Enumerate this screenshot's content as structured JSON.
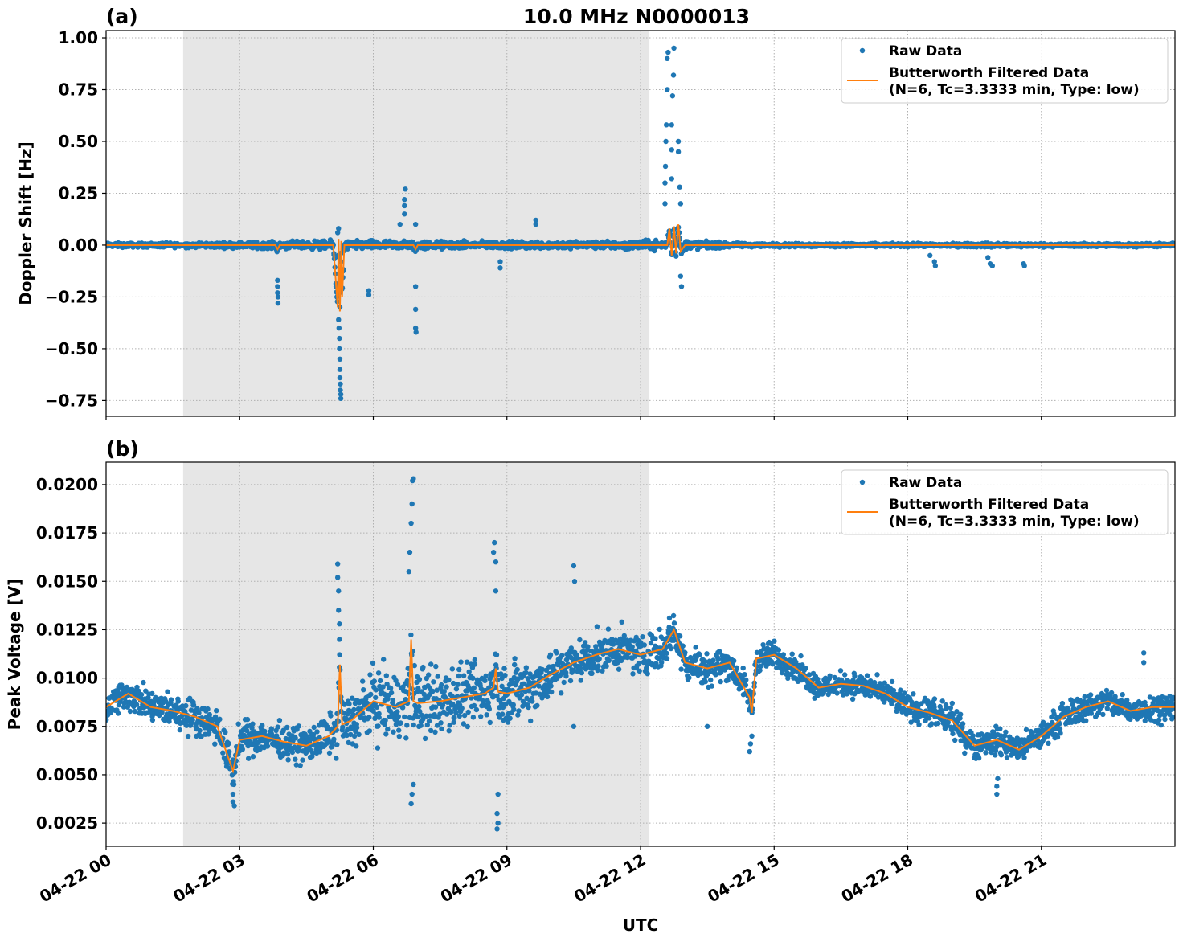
{
  "title": "10.0 MHz N0000013",
  "xlabel": "UTC",
  "colors": {
    "raw": "#1f77b4",
    "filtered": "#ff7f0e",
    "shade": "#e6e6e6",
    "grid": "#b0b0b0"
  },
  "chart_data": [
    {
      "type": "scatter",
      "panel_label": "(a)",
      "ylabel": "Doppler Shift [Hz]",
      "x_units": "hours UTC on 04-22",
      "xlim": [
        0,
        24
      ],
      "ylim": [
        -0.826,
        1.035
      ],
      "grid": true,
      "legend_placement": "top-right",
      "legend": [
        "Raw Data",
        "Butterworth Filtered Data",
        "(N=6, Tc=3.3333 min, Type: low)"
      ],
      "shaded_interval": [
        1.73,
        12.2
      ],
      "x_ticks": [
        0,
        3,
        6,
        9,
        12,
        15,
        18,
        21
      ],
      "x_tick_labels": [
        "04-22 00",
        "04-22 03",
        "04-22 06",
        "04-22 09",
        "04-22 12",
        "04-22 15",
        "04-22 18",
        "04-22 21"
      ],
      "y_ticks": [
        -0.75,
        -0.5,
        -0.25,
        0,
        0.25,
        0.5,
        0.75,
        1.0
      ],
      "y_tick_labels": [
        "−0.75",
        "−0.50",
        "−0.25",
        "0.00",
        "0.25",
        "0.50",
        "0.75",
        "1.00"
      ],
      "filtered": {
        "x": [
          0,
          3.8,
          3.85,
          3.9,
          5.1,
          5.2,
          5.22,
          5.25,
          5.28,
          5.3,
          5.35,
          6.9,
          6.95,
          7.0,
          12.6,
          12.65,
          12.7,
          12.75,
          12.8,
          12.85,
          12.9,
          13.0,
          24
        ],
        "y": [
          0,
          0,
          -0.02,
          0,
          0,
          -0.3,
          0.03,
          -0.32,
          0.02,
          -0.25,
          0,
          0,
          -0.02,
          0,
          0,
          0.08,
          -0.05,
          0.09,
          -0.04,
          0.1,
          -0.03,
          0,
          0
        ]
      },
      "raw_band": {
        "x": [
          0,
          1,
          2,
          3,
          4,
          5,
          6,
          7,
          8,
          9,
          10,
          11,
          12,
          13,
          14,
          15,
          16,
          17,
          18,
          19,
          20,
          21,
          22,
          23,
          24
        ],
        "half_width": [
          0.015,
          0.015,
          0.017,
          0.02,
          0.025,
          0.03,
          0.03,
          0.03,
          0.025,
          0.025,
          0.025,
          0.025,
          0.03,
          0.035,
          0.015,
          0.012,
          0.012,
          0.012,
          0.012,
          0.012,
          0.015,
          0.012,
          0.012,
          0.012,
          0.012
        ]
      },
      "raw_outliers": [
        [
          3.85,
          -0.17
        ],
        [
          3.85,
          -0.2
        ],
        [
          3.85,
          -0.23
        ],
        [
          3.86,
          -0.25
        ],
        [
          3.86,
          -0.28
        ],
        [
          5.22,
          -0.36
        ],
        [
          5.23,
          -0.4
        ],
        [
          5.24,
          -0.45
        ],
        [
          5.24,
          -0.5
        ],
        [
          5.25,
          -0.55
        ],
        [
          5.25,
          -0.6
        ],
        [
          5.25,
          -0.64
        ],
        [
          5.26,
          -0.67
        ],
        [
          5.26,
          -0.7
        ],
        [
          5.27,
          -0.72
        ],
        [
          5.27,
          -0.74
        ],
        [
          5.2,
          0.06
        ],
        [
          5.22,
          0.08
        ],
        [
          5.9,
          -0.22
        ],
        [
          5.9,
          -0.24
        ],
        [
          6.6,
          0.1
        ],
        [
          6.7,
          0.15
        ],
        [
          6.7,
          0.19
        ],
        [
          6.7,
          0.22
        ],
        [
          6.72,
          0.27
        ],
        [
          6.95,
          0.1
        ],
        [
          6.95,
          -0.2
        ],
        [
          6.95,
          -0.31
        ],
        [
          6.95,
          -0.4
        ],
        [
          6.96,
          -0.42
        ],
        [
          8.85,
          -0.08
        ],
        [
          8.85,
          -0.11
        ],
        [
          9.65,
          0.1
        ],
        [
          9.65,
          0.12
        ],
        [
          12.55,
          0.2
        ],
        [
          12.55,
          0.3
        ],
        [
          12.56,
          0.38
        ],
        [
          12.57,
          0.5
        ],
        [
          12.58,
          0.58
        ],
        [
          12.6,
          0.75
        ],
        [
          12.6,
          0.9
        ],
        [
          12.62,
          0.93
        ],
        [
          12.7,
          0.32
        ],
        [
          12.7,
          0.46
        ],
        [
          12.7,
          0.58
        ],
        [
          12.72,
          0.72
        ],
        [
          12.74,
          0.82
        ],
        [
          12.75,
          0.95
        ],
        [
          12.85,
          0.5
        ],
        [
          12.85,
          0.45
        ],
        [
          12.88,
          0.28
        ],
        [
          12.9,
          0.2
        ],
        [
          12.9,
          -0.15
        ],
        [
          12.92,
          -0.2
        ],
        [
          18.5,
          -0.05
        ],
        [
          18.6,
          -0.08
        ],
        [
          18.62,
          -0.1
        ],
        [
          19.8,
          -0.06
        ],
        [
          19.85,
          -0.09
        ],
        [
          19.9,
          -0.1
        ],
        [
          20.6,
          -0.09
        ],
        [
          20.62,
          -0.1
        ]
      ]
    },
    {
      "type": "scatter",
      "panel_label": "(b)",
      "ylabel": "Peak Voltage [V]",
      "x_units": "hours UTC on 04-22",
      "xlim": [
        0,
        24
      ],
      "ylim": [
        0.0013,
        0.02116
      ],
      "grid": true,
      "legend_placement": "top-right",
      "legend": [
        "Raw Data",
        "Butterworth Filtered Data",
        "(N=6, Tc=3.3333 min, Type: low)"
      ],
      "shaded_interval": [
        1.73,
        12.2
      ],
      "x_ticks": [
        0,
        3,
        6,
        9,
        12,
        15,
        18,
        21
      ],
      "x_tick_labels": [
        "04-22 00",
        "04-22 03",
        "04-22 06",
        "04-22 09",
        "04-22 12",
        "04-22 15",
        "04-22 18",
        "04-22 21"
      ],
      "y_ticks": [
        0.0025,
        0.005,
        0.0075,
        0.01,
        0.0125,
        0.015,
        0.0175,
        0.02
      ],
      "y_tick_labels": [
        "0.0025",
        "0.0050",
        "0.0075",
        "0.0100",
        "0.0125",
        "0.0150",
        "0.0175",
        "0.0200"
      ],
      "filtered": {
        "x": [
          0,
          0.5,
          1,
          1.5,
          2,
          2.5,
          2.85,
          3,
          3.5,
          4,
          4.5,
          5,
          5.2,
          5.25,
          5.3,
          5.5,
          6,
          6.5,
          6.8,
          6.85,
          6.9,
          7,
          7.5,
          8,
          8.5,
          8.7,
          8.75,
          8.8,
          9,
          9.5,
          10,
          10.5,
          11,
          11.5,
          12,
          12.5,
          12.75,
          13,
          13.5,
          14,
          14.45,
          14.5,
          14.6,
          15,
          15.5,
          16,
          16.5,
          17,
          17.5,
          18,
          18.5,
          19,
          19.5,
          20,
          20.5,
          21,
          21.5,
          22,
          22.5,
          23,
          23.5,
          24
        ],
        "y": [
          0.0085,
          0.0092,
          0.0085,
          0.0083,
          0.008,
          0.0075,
          0.0052,
          0.0068,
          0.007,
          0.0067,
          0.0065,
          0.007,
          0.0075,
          0.0107,
          0.0076,
          0.0078,
          0.0088,
          0.0085,
          0.0088,
          0.012,
          0.0088,
          0.0087,
          0.0088,
          0.009,
          0.0092,
          0.0095,
          0.0105,
          0.0093,
          0.0092,
          0.0095,
          0.0102,
          0.0108,
          0.0112,
          0.0115,
          0.0112,
          0.0115,
          0.0125,
          0.0108,
          0.0105,
          0.0108,
          0.009,
          0.0082,
          0.011,
          0.0112,
          0.0105,
          0.0095,
          0.0097,
          0.0096,
          0.0092,
          0.0085,
          0.0082,
          0.0078,
          0.0065,
          0.0068,
          0.0063,
          0.007,
          0.008,
          0.0085,
          0.0088,
          0.0083,
          0.0085,
          0.0085
        ]
      },
      "raw_band": {
        "x": [
          0,
          1,
          2,
          3,
          4,
          5,
          6,
          7,
          8,
          9,
          10,
          11,
          12,
          13,
          14,
          15,
          16,
          17,
          18,
          19,
          20,
          21,
          22,
          23,
          24
        ],
        "half_width": [
          0.0012,
          0.0012,
          0.0013,
          0.0013,
          0.0012,
          0.0015,
          0.0025,
          0.003,
          0.0022,
          0.0025,
          0.0018,
          0.0015,
          0.0015,
          0.0014,
          0.0012,
          0.001,
          0.0009,
          0.0009,
          0.001,
          0.0011,
          0.001,
          0.001,
          0.001,
          0.001,
          0.001
        ]
      },
      "raw_outliers": [
        [
          2.85,
          0.0036
        ],
        [
          2.85,
          0.004
        ],
        [
          2.87,
          0.0045
        ],
        [
          2.88,
          0.0034
        ],
        [
          5.2,
          0.0159
        ],
        [
          5.2,
          0.0152
        ],
        [
          5.22,
          0.0145
        ],
        [
          5.22,
          0.0135
        ],
        [
          5.24,
          0.0128
        ],
        [
          5.24,
          0.012
        ],
        [
          6.8,
          0.0155
        ],
        [
          6.82,
          0.0165
        ],
        [
          6.85,
          0.018
        ],
        [
          6.87,
          0.019
        ],
        [
          6.88,
          0.0202
        ],
        [
          6.9,
          0.0203
        ],
        [
          6.85,
          0.0035
        ],
        [
          6.87,
          0.004
        ],
        [
          6.9,
          0.0045
        ],
        [
          8.7,
          0.0165
        ],
        [
          8.72,
          0.017
        ],
        [
          8.75,
          0.016
        ],
        [
          8.75,
          0.0145
        ],
        [
          8.78,
          0.003
        ],
        [
          8.78,
          0.0022
        ],
        [
          8.8,
          0.0025
        ],
        [
          8.8,
          0.004
        ],
        [
          10.5,
          0.0158
        ],
        [
          10.52,
          0.015
        ],
        [
          10.5,
          0.0075
        ],
        [
          13.5,
          0.0075
        ],
        [
          14.45,
          0.0062
        ],
        [
          14.47,
          0.0066
        ],
        [
          14.5,
          0.007
        ],
        [
          20.0,
          0.004
        ],
        [
          20.0,
          0.0044
        ],
        [
          20.02,
          0.0048
        ],
        [
          23.3,
          0.0113
        ],
        [
          23.3,
          0.0108
        ]
      ]
    }
  ]
}
